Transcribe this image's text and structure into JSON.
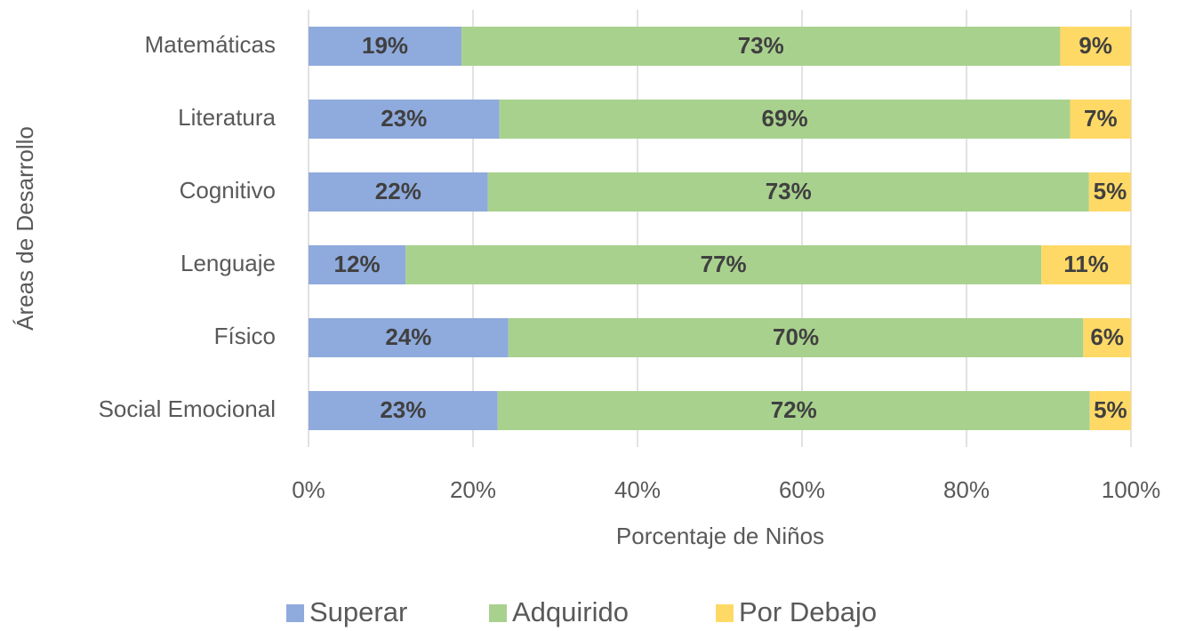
{
  "chart_data": {
    "type": "stacked_barh",
    "xlabel": "Porcentaje de Niños",
    "ylabel": "Áreas de Desarrollo",
    "categories": [
      "Matemáticas",
      "Literatura",
      "Cognitivo",
      "Lenguaje",
      "Físico",
      "Social Emocional"
    ],
    "series": [
      {
        "name": "Superar",
        "color": "#8faadc",
        "values": [
          18.6,
          23.2,
          21.8,
          11.8,
          24.3,
          23.0
        ],
        "value_labels": [
          "19%",
          "23%",
          "22%",
          "12%",
          "24%",
          "23%"
        ]
      },
      {
        "name": "Adquirido",
        "color": "#a9d18e",
        "values": [
          72.8,
          69.4,
          73.1,
          77.3,
          69.9,
          72.0
        ],
        "value_labels": [
          "73%",
          "69%",
          "73%",
          "77%",
          "70%",
          "72%"
        ]
      },
      {
        "name": "Por Debajo",
        "color": "#ffd966",
        "values": [
          8.6,
          7.4,
          5.1,
          10.9,
          5.8,
          5.0
        ],
        "value_labels": [
          "9%",
          "7%",
          "5%",
          "11%",
          "6%",
          "5%"
        ]
      }
    ],
    "xlim": [
      0,
      100
    ],
    "xticks": [
      {
        "value": 0,
        "label": "0%"
      },
      {
        "value": 20,
        "label": "20%"
      },
      {
        "value": 40,
        "label": "40%"
      },
      {
        "value": 60,
        "label": "60%"
      },
      {
        "value": 80,
        "label": "80%"
      },
      {
        "value": 100,
        "label": "100%"
      }
    ],
    "grid": true,
    "legend": "bottom"
  }
}
